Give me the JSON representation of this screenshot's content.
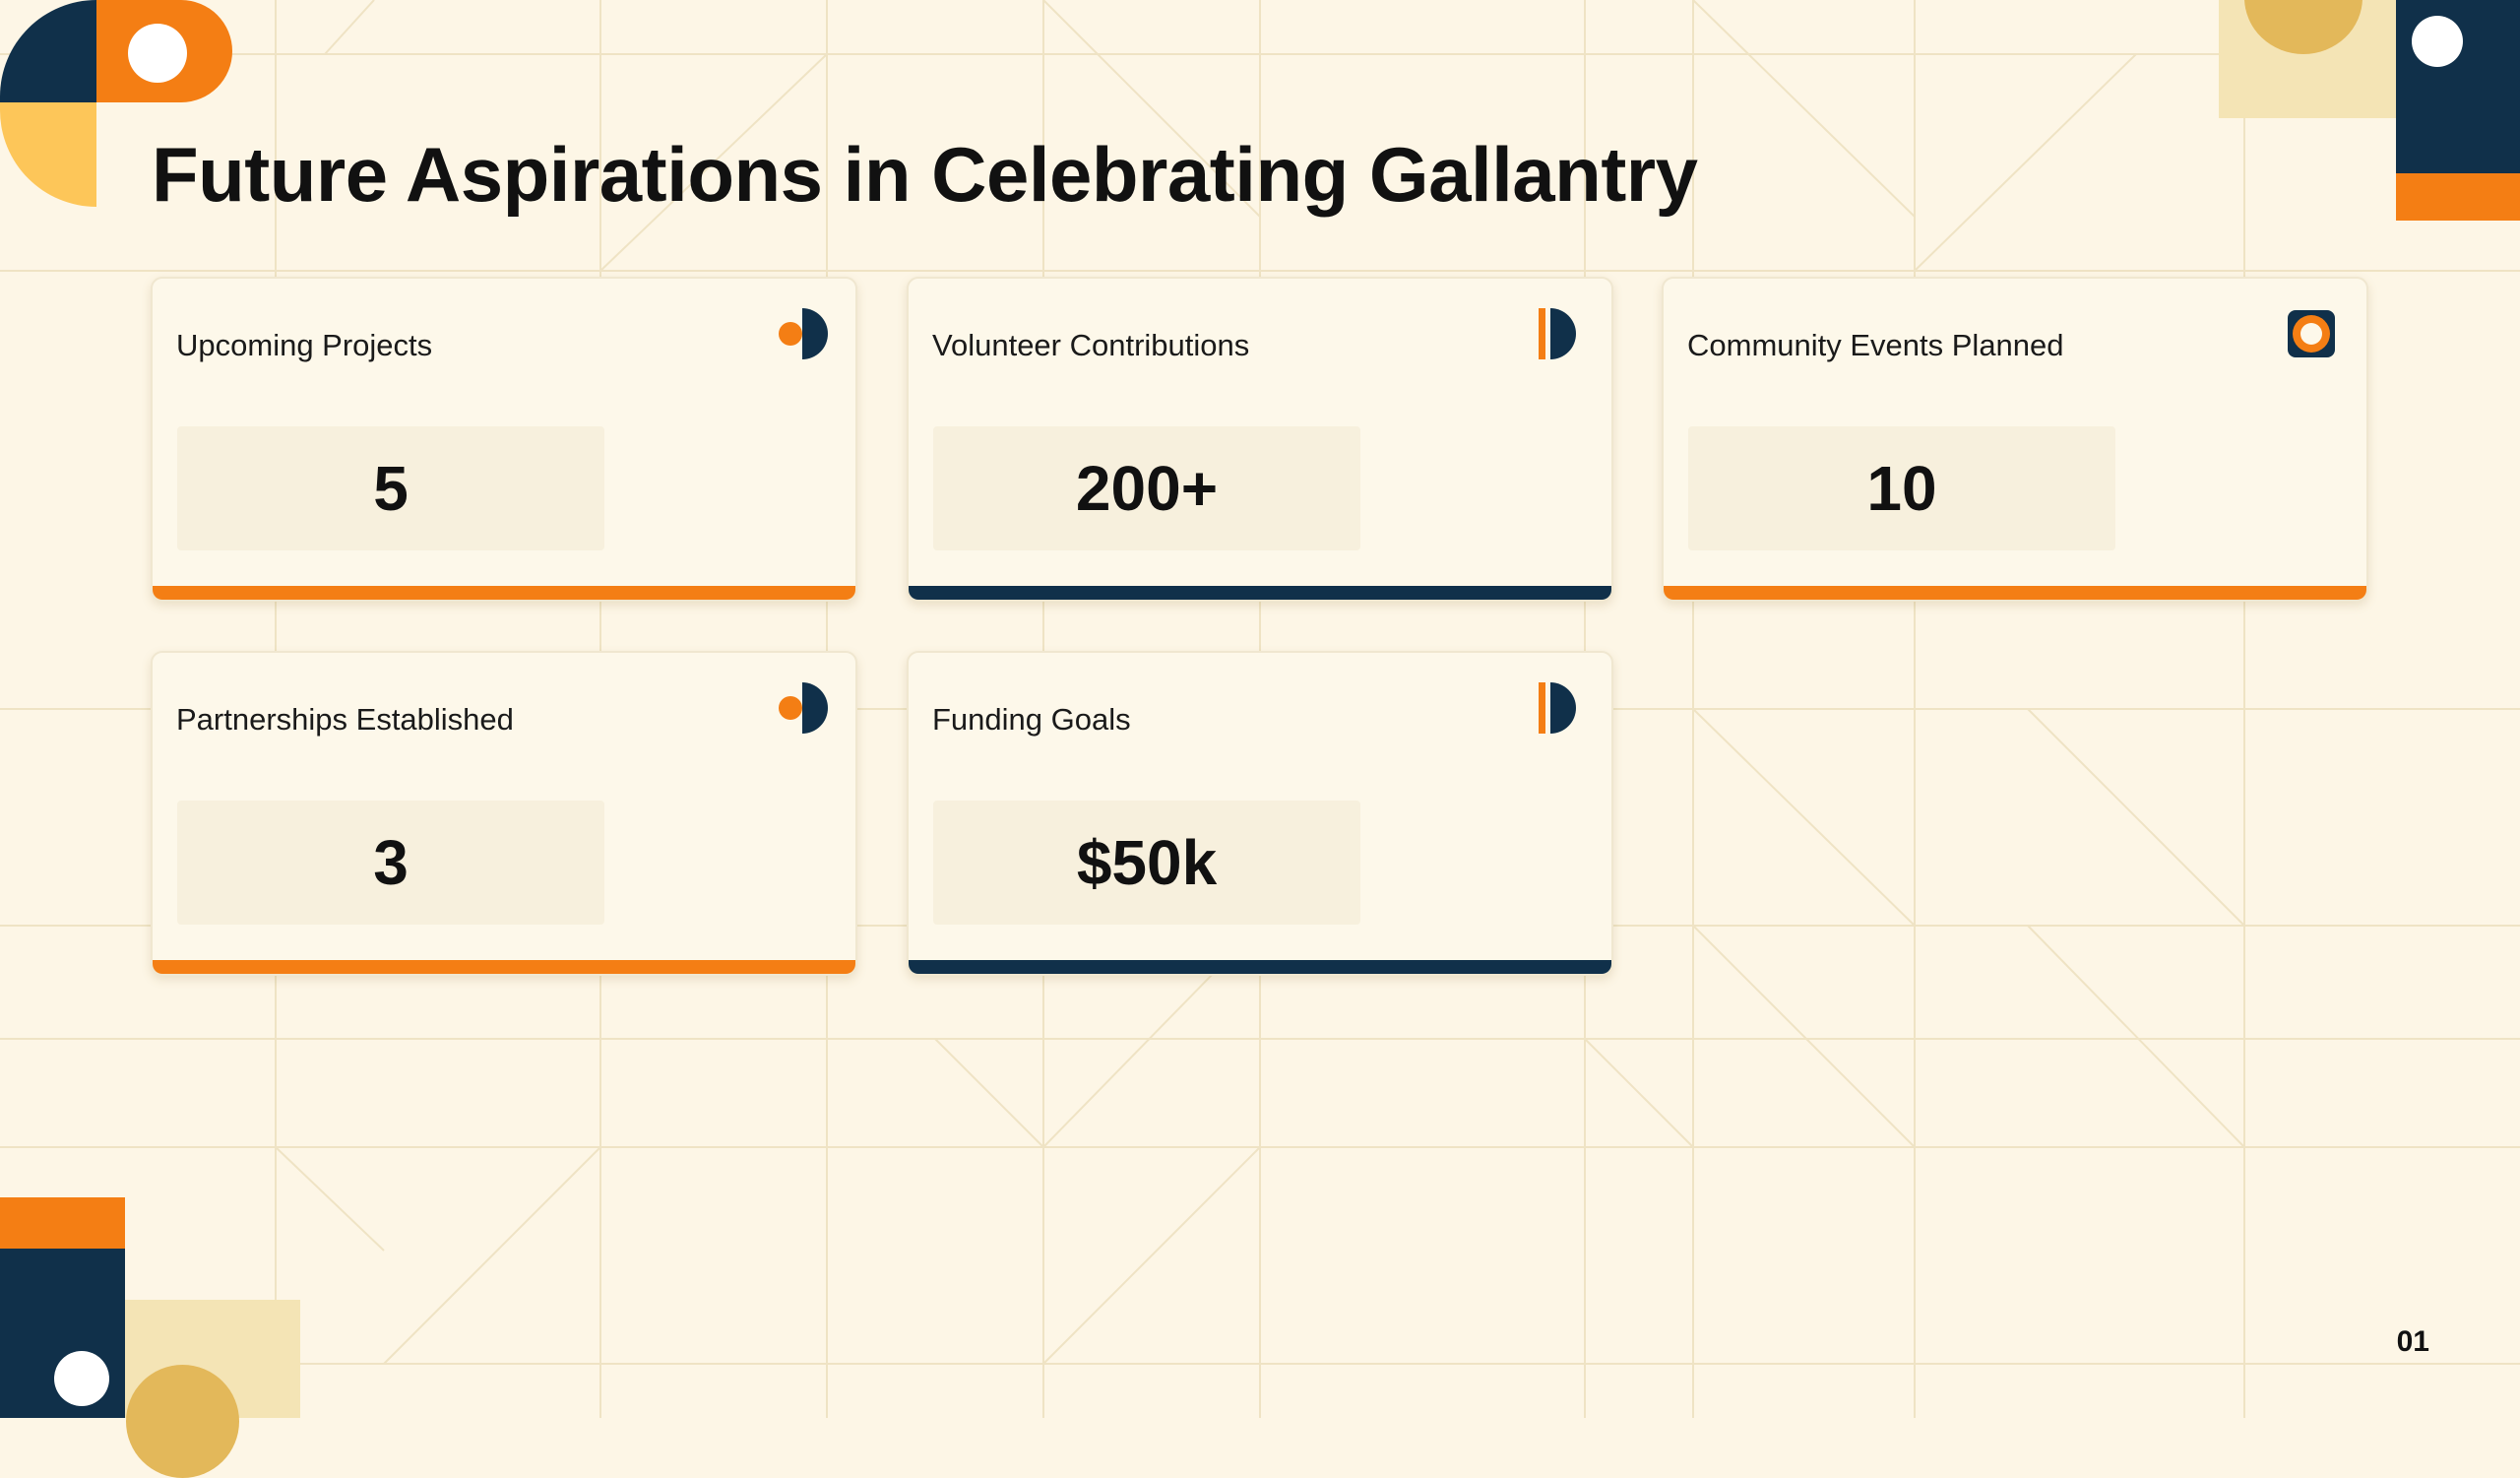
{
  "title": "Future Aspirations in Celebrating Gallantry",
  "colors": {
    "orange": "#f47e14",
    "navy": "#10304a",
    "background": "#fdf6e6"
  },
  "cards": [
    {
      "label": "Upcoming Projects",
      "value": "5",
      "icon": "dot-halfcircle-icon",
      "bar_color": "orange"
    },
    {
      "label": "Volunteer Contributions",
      "value": "200+",
      "icon": "bar-halfcircle-icon",
      "bar_color": "navy"
    },
    {
      "label": "Community Events Planned",
      "value": "10",
      "icon": "ring-square-icon",
      "bar_color": "orange"
    },
    {
      "label": "Partnerships Established",
      "value": "3",
      "icon": "dot-halfcircle-icon",
      "bar_color": "orange"
    },
    {
      "label": "Funding Goals",
      "value": "$50k",
      "icon": "bar-halfcircle-icon",
      "bar_color": "navy"
    }
  ],
  "page_number": "01"
}
